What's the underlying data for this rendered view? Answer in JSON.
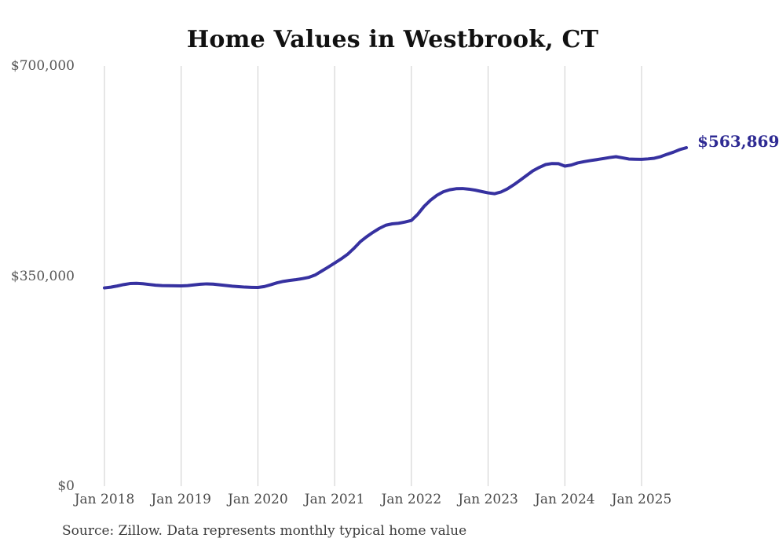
{
  "page": {
    "title": "Home Values in Westbrook, CT",
    "source_note": "Source: Zillow. Data represents monthly typical home value"
  },
  "chart_data": {
    "type": "line",
    "title": "Home Values in Westbrook, CT",
    "xlabel": "",
    "ylabel": "",
    "ylim": [
      0,
      700000
    ],
    "grid": "vertical-only",
    "legend": "none",
    "grid_color": "#cccccc",
    "end_label": "$563,869",
    "end_label_color": "#2e2a93",
    "x_ticks": [
      {
        "label": "Jan 2018",
        "month_index": 0
      },
      {
        "label": "Jan 2019",
        "month_index": 12
      },
      {
        "label": "Jan 2020",
        "month_index": 24
      },
      {
        "label": "Jan 2021",
        "month_index": 36
      },
      {
        "label": "Jan 2022",
        "month_index": 48
      },
      {
        "label": "Jan 2023",
        "month_index": 60
      },
      {
        "label": "Jan 2024",
        "month_index": 72
      },
      {
        "label": "Jan 2025",
        "month_index": 84
      }
    ],
    "y_ticks": [
      {
        "label": "$0",
        "value": 0
      },
      {
        "label": "$350,000",
        "value": 350000
      },
      {
        "label": "$700,000",
        "value": 700000
      }
    ],
    "series": [
      {
        "name": "Monthly typical home value",
        "color": "#3631a0",
        "x": [
          "2018-01",
          "2018-02",
          "2018-03",
          "2018-04",
          "2018-05",
          "2018-06",
          "2018-07",
          "2018-08",
          "2018-09",
          "2018-10",
          "2018-11",
          "2018-12",
          "2019-01",
          "2019-02",
          "2019-03",
          "2019-04",
          "2019-05",
          "2019-06",
          "2019-07",
          "2019-08",
          "2019-09",
          "2019-10",
          "2019-11",
          "2019-12",
          "2020-01",
          "2020-02",
          "2020-03",
          "2020-04",
          "2020-05",
          "2020-06",
          "2020-07",
          "2020-08",
          "2020-09",
          "2020-10",
          "2020-11",
          "2020-12",
          "2021-01",
          "2021-02",
          "2021-03",
          "2021-04",
          "2021-05",
          "2021-06",
          "2021-07",
          "2021-08",
          "2021-09",
          "2021-10",
          "2021-11",
          "2021-12",
          "2022-01",
          "2022-02",
          "2022-03",
          "2022-04",
          "2022-05",
          "2022-06",
          "2022-07",
          "2022-08",
          "2022-09",
          "2022-10",
          "2022-11",
          "2022-12",
          "2023-01",
          "2023-02",
          "2023-03",
          "2023-04",
          "2023-05",
          "2023-06",
          "2023-07",
          "2023-08",
          "2023-09",
          "2023-10",
          "2023-11",
          "2023-12",
          "2024-01",
          "2024-02",
          "2024-03",
          "2024-04",
          "2024-05",
          "2024-06",
          "2024-07",
          "2024-08",
          "2024-09",
          "2024-10",
          "2024-11",
          "2024-12",
          "2025-01",
          "2025-02",
          "2025-03",
          "2025-04",
          "2025-05",
          "2025-06",
          "2025-07",
          "2025-08"
        ],
        "values": [
          330300,
          331500,
          333500,
          335800,
          337500,
          337900,
          337200,
          336000,
          334800,
          334200,
          334000,
          333800,
          333600,
          334200,
          335300,
          336400,
          337000,
          336600,
          335500,
          334300,
          333200,
          332400,
          331600,
          331200,
          331000,
          332500,
          335500,
          338800,
          341200,
          342800,
          344100,
          345800,
          348000,
          352000,
          358500,
          365000,
          371700,
          378500,
          386100,
          396000,
          407100,
          415500,
          422900,
          429500,
          434700,
          437000,
          438000,
          440000,
          442600,
          453000,
          466200,
          476500,
          484600,
          490500,
          493800,
          495500,
          495800,
          494800,
          493100,
          490800,
          488600,
          487200,
          490000,
          495100,
          502000,
          509600,
          517500,
          525300,
          531000,
          535800,
          537500,
          537200,
          533200,
          535000,
          538500,
          540600,
          542400,
          544000,
          545700,
          547500,
          548900,
          547000,
          545000,
          544600,
          544400,
          545200,
          546300,
          549000,
          552900,
          556500,
          560800,
          563869
        ]
      }
    ]
  }
}
